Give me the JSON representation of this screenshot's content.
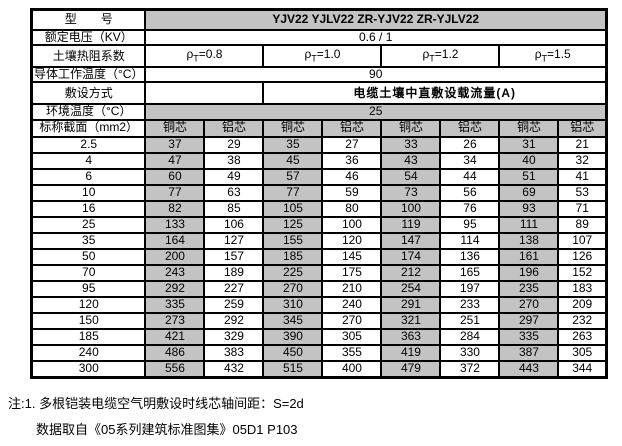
{
  "colors": {
    "cell_gray": "#c3c3c3",
    "border_black": "#000000",
    "page_background": "#ffffff"
  },
  "table": {
    "model_label": "型　　号",
    "model_value": "YJV22  YJLV22  ZR-YJV22  ZR-YJLV22",
    "voltage_label": "额定电压（KV）",
    "voltage_value": "0.6 / 1",
    "soil_label": "土壤热阻系数",
    "rho_symbol": "ρ",
    "rho_sub": "T",
    "rho_values": [
      "=0.8",
      "=1.0",
      "=1.2",
      "=1.5"
    ],
    "conductor_temp_label": "导体工作温度（°C）",
    "conductor_temp_value": "90",
    "laying_label": "敷设方式",
    "laying_value": "电缆土壤中直敷设载流量(A)",
    "ambient_temp_label": "环境温度（°C）",
    "ambient_temp_value": "25",
    "section_label": "标称截面（mm2）",
    "core_headers": [
      "铜芯",
      "铝芯",
      "铜芯",
      "铝芯",
      "铜芯",
      "铝芯",
      "铜芯",
      "铝芯"
    ],
    "rows": [
      {
        "section": "2.5",
        "values": [
          "37",
          "29",
          "35",
          "27",
          "33",
          "26",
          "31",
          "21"
        ]
      },
      {
        "section": "4",
        "values": [
          "47",
          "38",
          "45",
          "36",
          "43",
          "34",
          "40",
          "32"
        ]
      },
      {
        "section": "6",
        "values": [
          "60",
          "49",
          "57",
          "46",
          "54",
          "44",
          "51",
          "41"
        ]
      },
      {
        "section": "10",
        "values": [
          "77",
          "63",
          "77",
          "59",
          "73",
          "56",
          "69",
          "53"
        ]
      },
      {
        "section": "16",
        "values": [
          "82",
          "85",
          "105",
          "80",
          "100",
          "76",
          "93",
          "71"
        ]
      },
      {
        "section": "25",
        "values": [
          "133",
          "106",
          "125",
          "100",
          "119",
          "95",
          "111",
          "89"
        ]
      },
      {
        "section": "35",
        "values": [
          "164",
          "127",
          "155",
          "120",
          "147",
          "114",
          "138",
          "107"
        ]
      },
      {
        "section": "50",
        "values": [
          "200",
          "157",
          "185",
          "145",
          "174",
          "136",
          "161",
          "126"
        ]
      },
      {
        "section": "70",
        "values": [
          "243",
          "189",
          "225",
          "175",
          "212",
          "165",
          "196",
          "152"
        ]
      },
      {
        "section": "95",
        "values": [
          "292",
          "227",
          "270",
          "210",
          "254",
          "197",
          "235",
          "183"
        ]
      },
      {
        "section": "120",
        "values": [
          "335",
          "259",
          "310",
          "240",
          "291",
          "233",
          "270",
          "209"
        ]
      },
      {
        "section": "150",
        "values": [
          "273",
          "292",
          "345",
          "270",
          "321",
          "251",
          "297",
          "232"
        ]
      },
      {
        "section": "185",
        "values": [
          "421",
          "329",
          "390",
          "305",
          "363",
          "284",
          "335",
          "263"
        ]
      },
      {
        "section": "240",
        "values": [
          "486",
          "383",
          "450",
          "355",
          "419",
          "330",
          "387",
          "305"
        ]
      },
      {
        "section": "300",
        "values": [
          "556",
          "432",
          "515",
          "400",
          "479",
          "372",
          "443",
          "344"
        ]
      }
    ]
  },
  "notes": {
    "line1": "注:1. 多根铠装电缆空气明敷设时线芯轴间距：S=2d",
    "line2": "数据取自《05系列建筑标准图集》05D1 P103"
  }
}
